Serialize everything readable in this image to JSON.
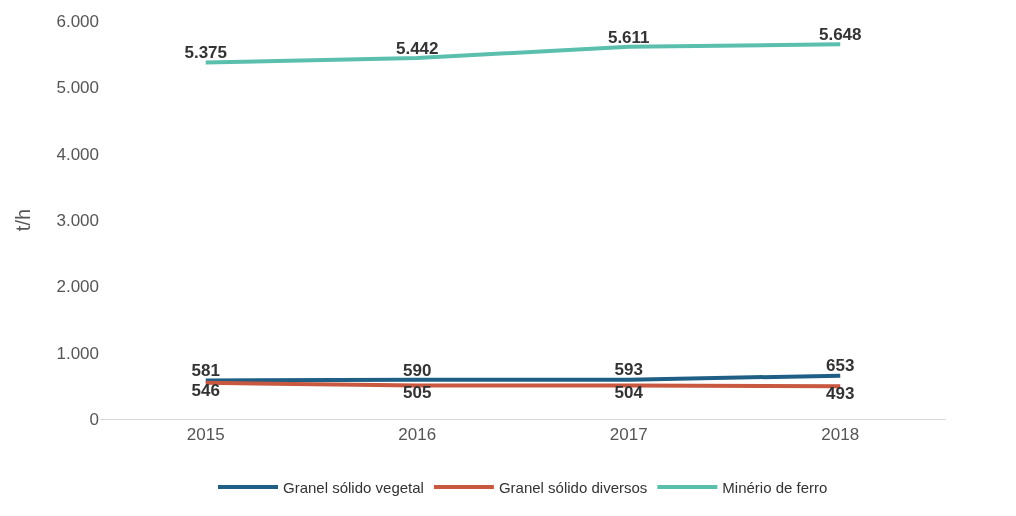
{
  "chart_data": {
    "type": "line",
    "ylabel": "t/h",
    "categories": [
      "2015",
      "2016",
      "2017",
      "2018"
    ],
    "series": [
      {
        "name": "Granel sólido vegetal",
        "color": "#1f5f86",
        "values": [
          581,
          590,
          593,
          653
        ],
        "value_labels": [
          "581",
          "590",
          "593",
          "653"
        ]
      },
      {
        "name": "Granel sólido diversos",
        "color": "#c8583f",
        "values": [
          546,
          505,
          504,
          493
        ],
        "value_labels": [
          "546",
          "505",
          "504",
          "493"
        ]
      },
      {
        "name": "Minério de ferro",
        "color": "#5bbfae",
        "values": [
          5375,
          5442,
          5611,
          5648
        ],
        "value_labels": [
          "5.375",
          "5.442",
          "5.611",
          "5.648"
        ]
      }
    ],
    "ylim": [
      0,
      6000
    ],
    "yticks": [
      0,
      {
        "value": 1000,
        "label": "1.000"
      },
      {
        "value": 2000,
        "label": "2.000"
      },
      {
        "value": 3000,
        "label": "3.000"
      },
      {
        "value": 4000,
        "label": "4.000"
      },
      {
        "value": 5000,
        "label": "5.000"
      },
      {
        "value": 6000,
        "label": "6.000"
      }
    ],
    "grid": false,
    "legend": "bottom",
    "marker": "none",
    "line_style": "solid"
  }
}
